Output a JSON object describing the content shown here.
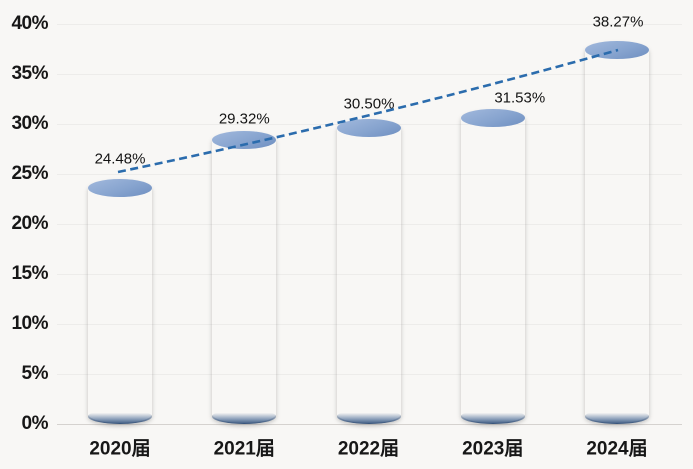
{
  "chart_data": {
    "type": "bar",
    "subtype": "3d-cylinder",
    "categories": [
      "2020届",
      "2021届",
      "2022届",
      "2023届",
      "2024届"
    ],
    "values": [
      24.48,
      29.32,
      30.5,
      31.53,
      38.27
    ],
    "data_labels": [
      "24.48%",
      "29.32%",
      "30.50%",
      "31.53%",
      "38.27%"
    ],
    "yticks": [
      "0%",
      "5%",
      "10%",
      "15%",
      "20%",
      "25%",
      "30%",
      "35%",
      "40%"
    ],
    "ylim": [
      0,
      40
    ],
    "y_step": 5,
    "grid": true,
    "legend": false,
    "trendline": {
      "type": "curved-fit",
      "style": "dashed",
      "color": "#2b6cad"
    },
    "colors": {
      "bar_main": "#6f97c7",
      "bar_edge_dark": "#2f5e97",
      "bar_top_face": "#87a4cf",
      "background": "#f8f7f5",
      "grid": "#edecea",
      "axis_line": "#d5d2cf",
      "label_text": "#171717"
    }
  }
}
